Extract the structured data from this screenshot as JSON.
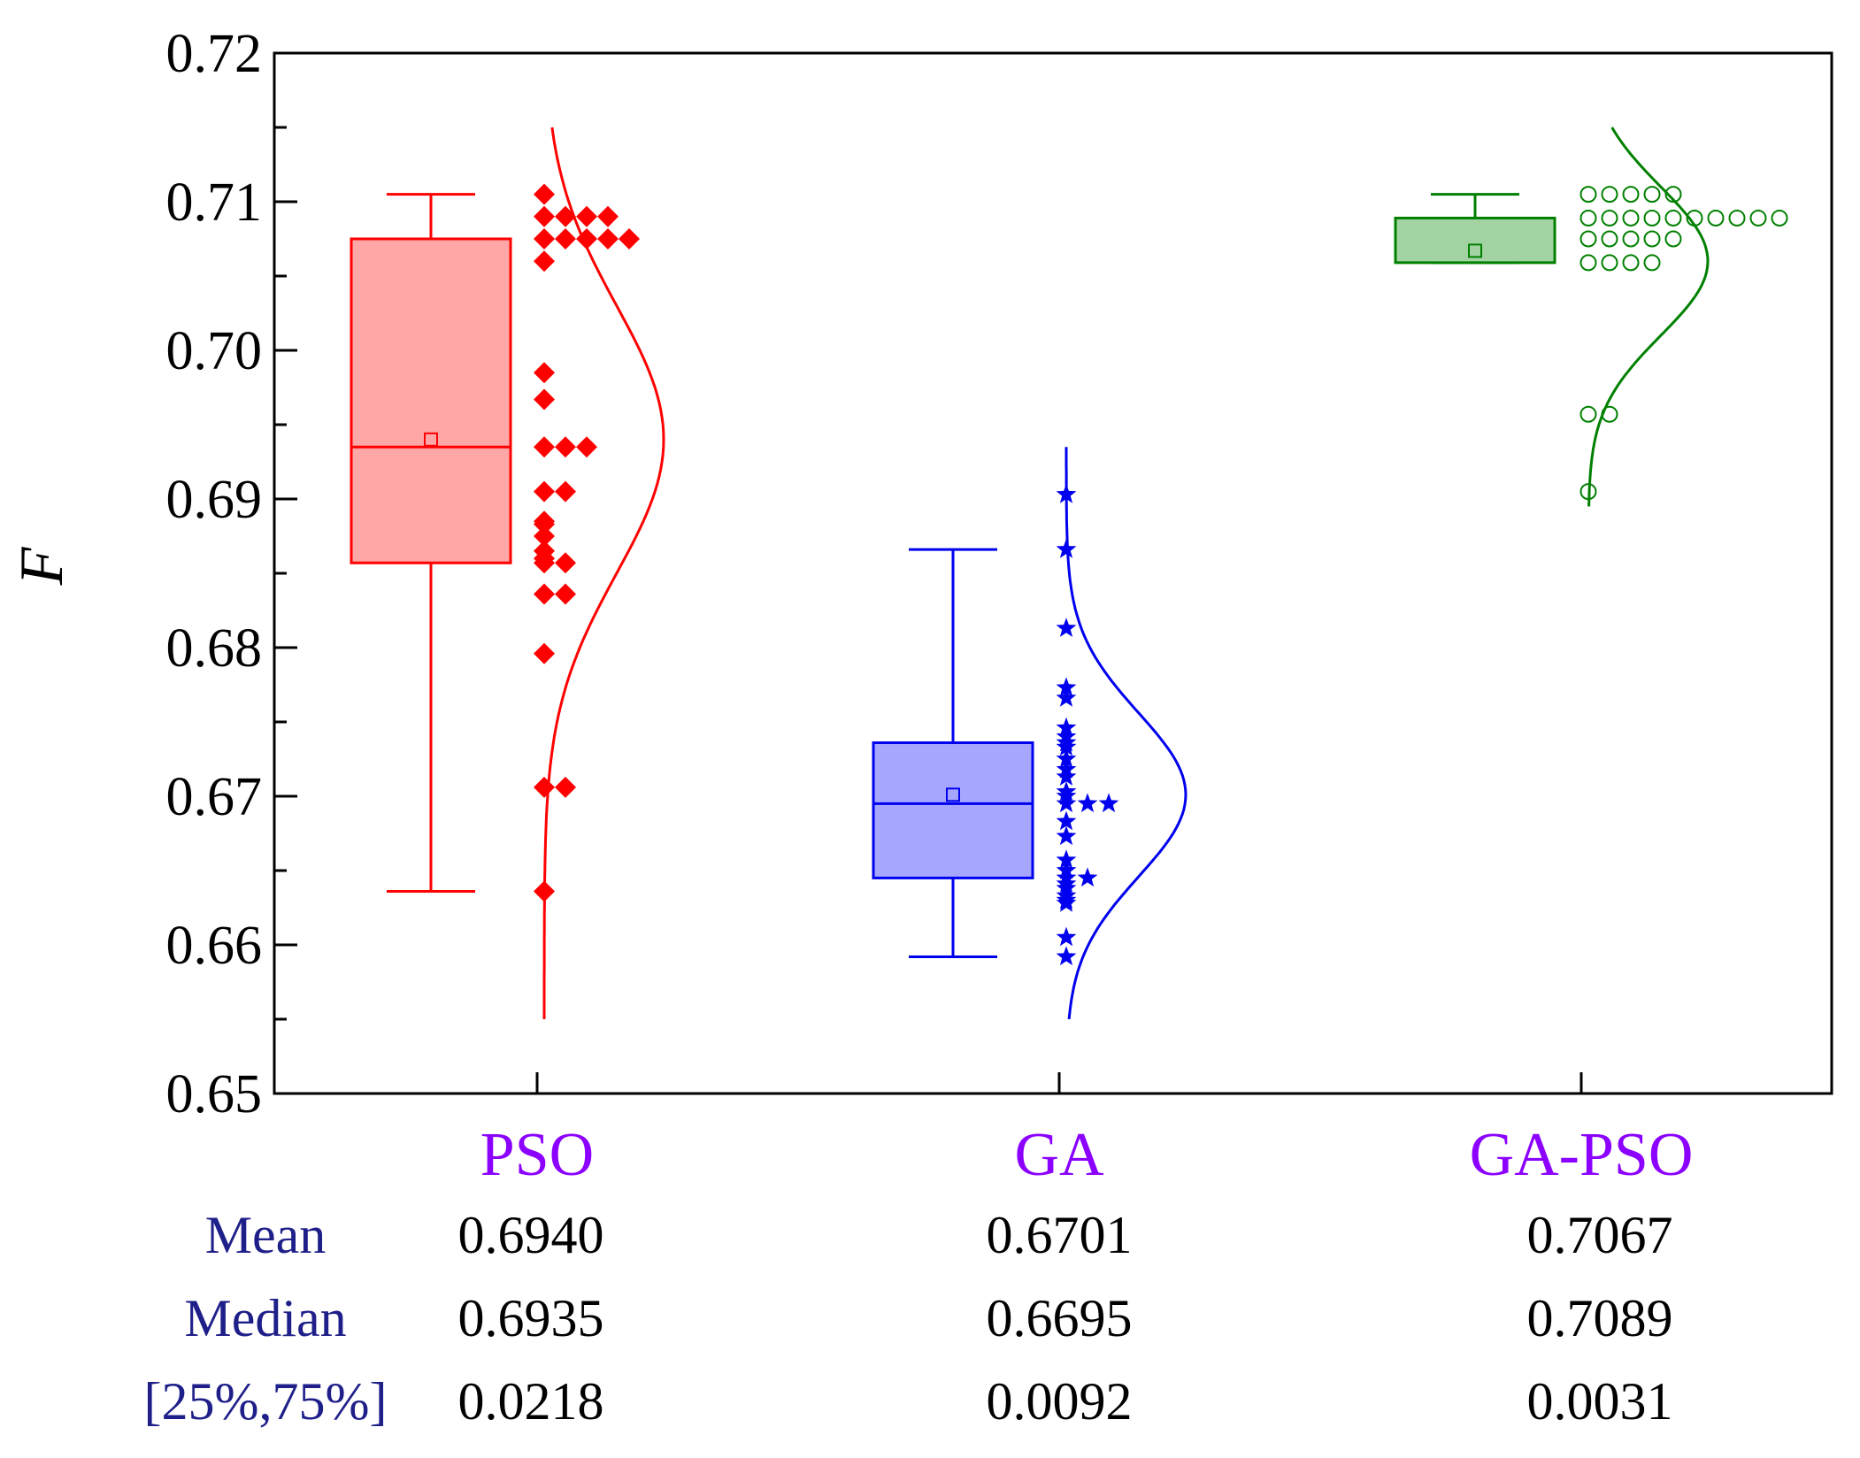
{
  "chart_data": {
    "type": "box",
    "ylabel": "F",
    "ylim": [
      0.65,
      0.72
    ],
    "yticks": [
      "0.65",
      "0.66",
      "0.67",
      "0.68",
      "0.69",
      "0.70",
      "0.71",
      "0.72"
    ],
    "category_color": "#8b00ff",
    "categories": [
      "PSO",
      "GA",
      "GA-PSO"
    ],
    "series": [
      {
        "color": "#ff0000",
        "fill": "#ffa6a6",
        "marker": "diamond",
        "whisker_low": 0.6636,
        "q1": 0.6857,
        "median": 0.6935,
        "q3": 0.7075,
        "whisker_high": 0.7105,
        "mean": 0.694,
        "dist_mean": 0.694,
        "dist_sd": 0.009,
        "dist_range": [
          0.655,
          0.715
        ],
        "points": [
          0.7105,
          0.709,
          0.709,
          0.709,
          0.709,
          0.7075,
          0.7075,
          0.7075,
          0.7075,
          0.7075,
          0.706,
          0.6985,
          0.6967,
          0.6935,
          0.6935,
          0.6935,
          0.6905,
          0.6905,
          0.6885,
          0.6883,
          0.6875,
          0.6865,
          0.686,
          0.6857,
          0.6857,
          0.6836,
          0.6836,
          0.6796,
          0.6706,
          0.6706,
          0.6636
        ]
      },
      {
        "color": "#0000ee",
        "fill": "#a6a6ff",
        "marker": "star",
        "whisker_low": 0.6592,
        "q1": 0.6645,
        "median": 0.6695,
        "q3": 0.6736,
        "whisker_high": 0.6866,
        "mean": 0.6701,
        "dist_mean": 0.6701,
        "dist_sd": 0.0055,
        "dist_range": [
          0.655,
          0.6935
        ],
        "points": [
          0.6903,
          0.6866,
          0.6813,
          0.6773,
          0.6766,
          0.6746,
          0.674,
          0.6736,
          0.6733,
          0.6725,
          0.6718,
          0.6713,
          0.6703,
          0.67,
          0.6695,
          0.6695,
          0.6695,
          0.6683,
          0.6673,
          0.6657,
          0.665,
          0.6645,
          0.6645,
          0.6641,
          0.6638,
          0.6633,
          0.663,
          0.6628,
          0.6605,
          0.6592
        ]
      },
      {
        "color": "#008000",
        "fill": "#a3d3a3",
        "marker": "circle",
        "whisker_low": 0.7059,
        "q1": 0.7059,
        "median": 0.7089,
        "q3": 0.7089,
        "whisker_high": 0.7105,
        "mean": 0.7067,
        "dist_mean": 0.706,
        "dist_sd": 0.005,
        "dist_range": [
          0.6895,
          0.715
        ],
        "points": [
          0.7105,
          0.7105,
          0.7105,
          0.7105,
          0.7105,
          0.7089,
          0.7089,
          0.7089,
          0.7089,
          0.7089,
          0.7089,
          0.7089,
          0.7089,
          0.7089,
          0.7089,
          0.7075,
          0.7075,
          0.7075,
          0.7075,
          0.7075,
          0.7059,
          0.7059,
          0.7059,
          0.7059,
          0.6957,
          0.6957,
          0.6905
        ]
      }
    ]
  },
  "stats_table": {
    "rows": [
      {
        "label": "Mean",
        "values": [
          "0.6940",
          "0.6701",
          "0.7067"
        ]
      },
      {
        "label": "Median",
        "values": [
          "0.6935",
          "0.6695",
          "0.7089"
        ]
      },
      {
        "label": "[25%,75%]",
        "values": [
          "0.0218",
          "0.0092",
          "0.0031"
        ]
      }
    ]
  }
}
